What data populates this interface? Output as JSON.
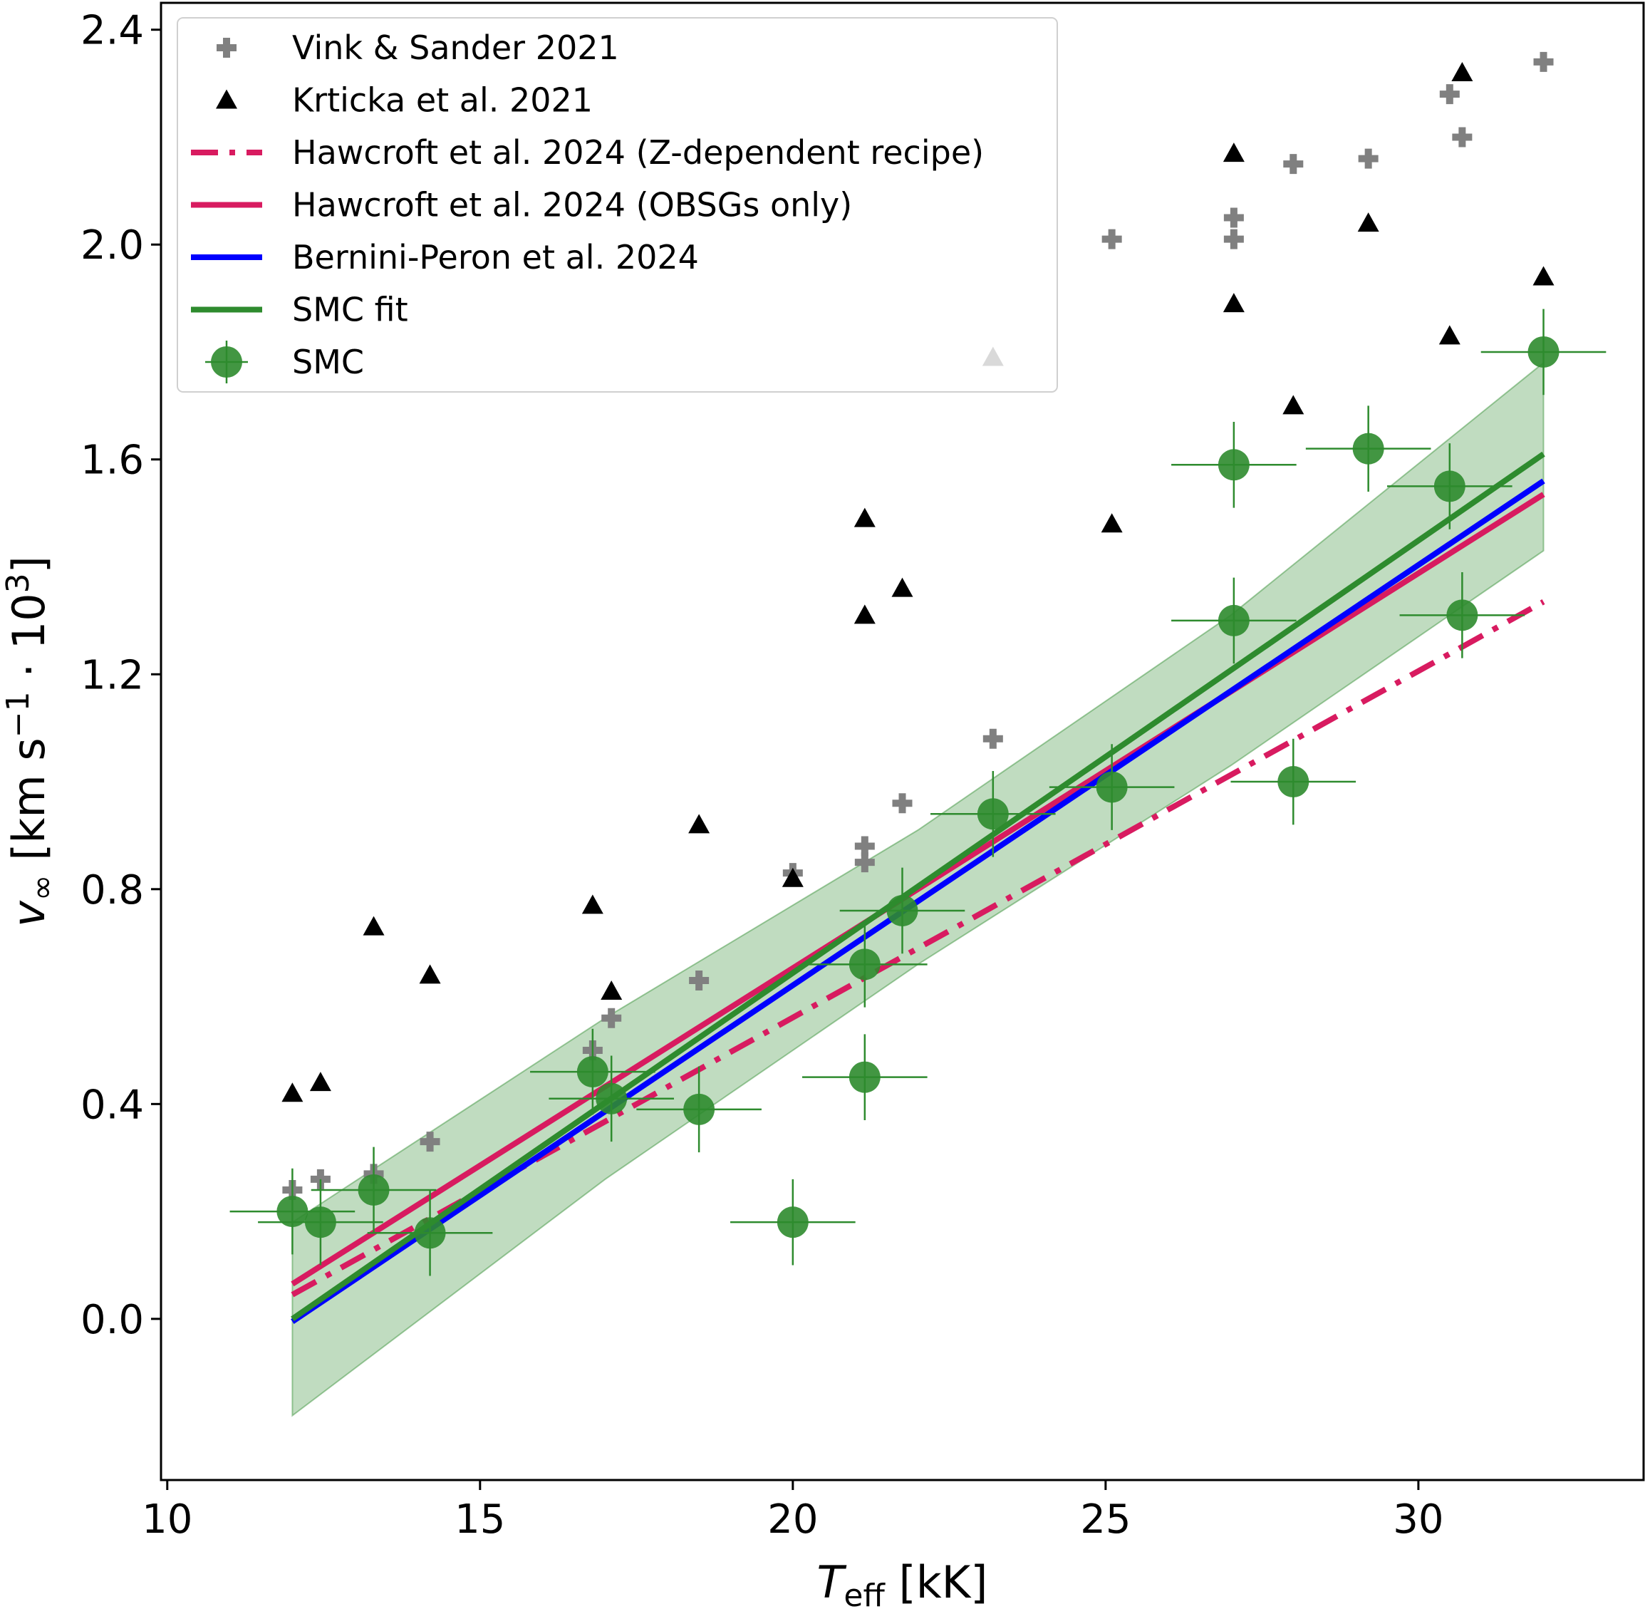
{
  "chart_data": {
    "type": "scatter",
    "title": "",
    "xlabel": {
      "main": "T",
      "sub": "eff",
      "unit": " [kK]"
    },
    "ylabel": {
      "main": "v",
      "sub": "∞",
      "unit_prefix": " [km s",
      "unit_exp": "−1",
      "unit_mid": " · 10",
      "unit_exp2": "3",
      "unit_suffix": "]"
    },
    "xlim": [
      9.9,
      33.6
    ],
    "ylim": [
      -0.3,
      2.45
    ],
    "xticks": [
      10,
      15,
      20,
      25,
      30
    ],
    "xtick_labels": [
      "10",
      "15",
      "20",
      "25",
      "30"
    ],
    "yticks": [
      0.0,
      0.4,
      0.8,
      1.2,
      1.6,
      2.0,
      2.4
    ],
    "ytick_labels": [
      "0.0",
      "0.4",
      "0.8",
      "1.2",
      "1.6",
      "2.0",
      "2.4"
    ],
    "grid": false,
    "legend_position": "top-left",
    "legend": [
      {
        "label": "Vink & Sander 2021",
        "kind": "plus",
        "color": "#808080"
      },
      {
        "label": "Krticka et al. 2021",
        "kind": "triangle",
        "color": "#000000"
      },
      {
        "label": "Hawcroft et al. 2024 (Z-dependent recipe)",
        "kind": "dashdot",
        "color": "#d81b60"
      },
      {
        "label": "Hawcroft et al. 2024 (OBSGs only)",
        "kind": "solid",
        "color": "#d81b60"
      },
      {
        "label": "Bernini-Peron et al. 2024",
        "kind": "solid",
        "color": "#0000ff"
      },
      {
        "label": "SMC fit",
        "kind": "solid",
        "color": "#2e8b2e"
      },
      {
        "label": "SMC",
        "kind": "circle",
        "color": "#2e8b2e"
      }
    ],
    "series": [
      {
        "name": "Vink & Sander 2021",
        "kind": "plus",
        "color": "#808080",
        "x": [
          12.0,
          12.45,
          13.3,
          14.2,
          16.8,
          17.1,
          18.5,
          20.0,
          21.15,
          21.15,
          21.75,
          23.2,
          25.1,
          27.05,
          27.05,
          28.0,
          29.2,
          30.5,
          30.7,
          32.0
        ],
        "y": [
          0.24,
          0.26,
          0.27,
          0.33,
          0.5,
          0.56,
          0.63,
          0.83,
          0.88,
          0.85,
          0.96,
          1.08,
          2.01,
          2.01,
          2.05,
          2.15,
          2.16,
          2.28,
          2.2,
          2.34
        ]
      },
      {
        "name": "Krticka et al. 2021",
        "kind": "triangle",
        "color": "#000000",
        "x": [
          12.0,
          12.45,
          13.3,
          14.2,
          16.8,
          17.1,
          18.5,
          20.0,
          21.15,
          21.15,
          21.75,
          23.2,
          25.1,
          27.05,
          27.05,
          28.0,
          29.2,
          30.5,
          30.7,
          32.0
        ],
        "y": [
          0.42,
          0.44,
          0.73,
          0.64,
          0.77,
          0.61,
          0.92,
          0.82,
          1.49,
          1.31,
          1.36,
          1.79,
          1.48,
          2.17,
          1.89,
          1.7,
          2.04,
          1.83,
          2.32,
          1.94
        ]
      },
      {
        "name": "SMC",
        "kind": "circle",
        "color": "#2e8b2e",
        "x": [
          12.0,
          12.45,
          13.3,
          14.2,
          16.8,
          17.1,
          18.5,
          20.0,
          21.15,
          21.15,
          21.75,
          23.2,
          25.1,
          27.05,
          27.05,
          28.0,
          29.2,
          30.5,
          30.7,
          32.0
        ],
        "y": [
          0.2,
          0.18,
          0.24,
          0.16,
          0.46,
          0.41,
          0.39,
          0.18,
          0.66,
          0.45,
          0.76,
          0.94,
          0.99,
          1.3,
          1.59,
          1.0,
          1.62,
          1.55,
          1.31,
          1.8
        ],
        "xerr": [
          1.0,
          1.0,
          1.0,
          1.0,
          1.0,
          1.0,
          1.0,
          1.0,
          1.0,
          1.0,
          1.0,
          1.0,
          1.0,
          1.0,
          1.0,
          1.0,
          1.0,
          1.0,
          1.0,
          1.0
        ],
        "yerr": [
          0.08,
          0.08,
          0.08,
          0.08,
          0.08,
          0.08,
          0.08,
          0.08,
          0.08,
          0.08,
          0.08,
          0.08,
          0.08,
          0.08,
          0.08,
          0.08,
          0.08,
          0.08,
          0.08,
          0.08
        ]
      }
    ],
    "lines": [
      {
        "name": "Hawcroft et al. 2024 (Z-dependent recipe)",
        "kind": "dashdot",
        "color": "#d81b60",
        "x": [
          12.0,
          32.0
        ],
        "y": [
          0.045,
          1.335
        ]
      },
      {
        "name": "Hawcroft et al. 2024 (OBSGs only)",
        "kind": "solid",
        "color": "#d81b60",
        "x": [
          12.0,
          32.0
        ],
        "y": [
          0.065,
          1.535
        ]
      },
      {
        "name": "Bernini-Peron et al. 2024",
        "kind": "solid",
        "color": "#0000ff",
        "x": [
          12.0,
          32.0
        ],
        "y": [
          -0.005,
          1.56
        ]
      },
      {
        "name": "SMC fit",
        "kind": "solid",
        "color": "#2e8b2e",
        "x": [
          12.0,
          32.0
        ],
        "y": [
          0.0,
          1.61
        ]
      }
    ],
    "band": {
      "color": "#2e8b2e",
      "x": [
        12.0,
        17.0,
        22.0,
        27.0,
        32.0
      ],
      "upper": [
        0.18,
        0.56,
        0.91,
        1.31,
        1.78
      ],
      "lower": [
        -0.18,
        0.26,
        0.66,
        1.03,
        1.43
      ]
    }
  }
}
